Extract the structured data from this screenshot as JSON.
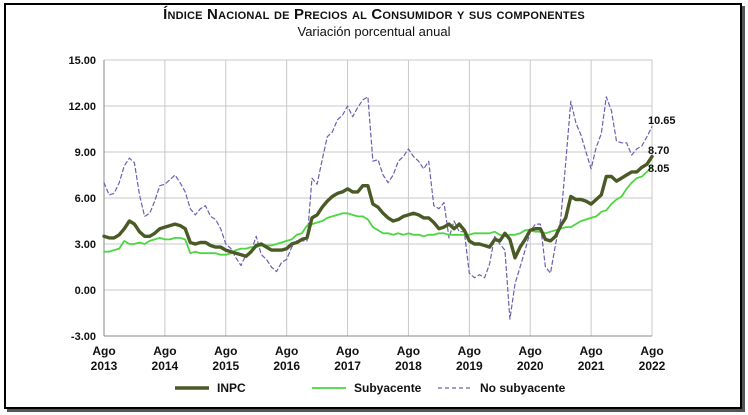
{
  "chart_data": {
    "type": "line",
    "title": "Índice Nacional de Precios al Consumidor y sus componentes",
    "subtitle": "Variación porcentual anual",
    "ylim": [
      -3.0,
      15.0
    ],
    "yticks": [
      "15.00",
      "12.00",
      "9.00",
      "6.00",
      "3.00",
      "0.00",
      "-3.00"
    ],
    "xticks": [
      {
        "top": "Ago",
        "bottom": "2013",
        "t": 0
      },
      {
        "top": "Ago",
        "bottom": "2014",
        "t": 12
      },
      {
        "top": "Ago",
        "bottom": "2015",
        "t": 24
      },
      {
        "top": "Ago",
        "bottom": "2016",
        "t": 36
      },
      {
        "top": "Ago",
        "bottom": "2017",
        "t": 48
      },
      {
        "top": "Ago",
        "bottom": "2018",
        "t": 60
      },
      {
        "top": "Ago",
        "bottom": "2019",
        "t": 72
      },
      {
        "top": "Ago",
        "bottom": "2020",
        "t": 84
      },
      {
        "top": "Ago",
        "bottom": "2021",
        "t": 96
      },
      {
        "top": "Ago",
        "bottom": "2022",
        "t": 108
      }
    ],
    "end_labels": [
      {
        "series": "No subyacente",
        "text": "10.65"
      },
      {
        "series": "INPC",
        "text": "8.70"
      },
      {
        "series": "Subyacente",
        "text": "8.05"
      }
    ],
    "series": [
      {
        "name": "INPC",
        "color": "#4a5a26",
        "values": [
          3.5,
          3.4,
          3.4,
          3.6,
          4.0,
          4.5,
          4.3,
          3.8,
          3.5,
          3.5,
          3.7,
          4.0,
          4.1,
          4.2,
          4.3,
          4.2,
          4.0,
          3.1,
          3.0,
          3.1,
          3.1,
          2.9,
          2.8,
          2.8,
          2.6,
          2.5,
          2.4,
          2.3,
          2.2,
          2.5,
          2.9,
          3.0,
          2.8,
          2.6,
          2.6,
          2.6,
          2.7,
          3.0,
          3.1,
          3.3,
          3.4,
          4.7,
          4.9,
          5.4,
          5.8,
          6.1,
          6.3,
          6.4,
          6.6,
          6.4,
          6.4,
          6.8,
          6.8,
          5.6,
          5.4,
          5.0,
          4.7,
          4.5,
          4.6,
          4.8,
          4.9,
          5.0,
          4.9,
          4.7,
          4.7,
          4.4,
          4.0,
          4.1,
          4.3,
          4.0,
          4.3,
          3.9,
          3.2,
          3.0,
          3.0,
          2.9,
          2.8,
          3.3,
          3.2,
          3.7,
          3.3,
          2.1,
          2.8,
          3.3,
          3.9,
          4.0,
          4.0,
          3.3,
          3.2,
          3.5,
          4.2,
          4.7,
          6.1,
          5.9,
          5.9,
          5.8,
          5.6,
          5.9,
          6.2,
          7.4,
          7.4,
          7.1,
          7.3,
          7.5,
          7.7,
          7.7,
          8.0,
          8.2,
          8.7
        ]
      },
      {
        "name": "Subyacente",
        "color": "#4cd640",
        "values": [
          2.5,
          2.5,
          2.6,
          2.7,
          3.2,
          3.0,
          3.0,
          3.1,
          3.0,
          3.2,
          3.3,
          3.4,
          3.3,
          3.3,
          3.4,
          3.4,
          3.3,
          2.4,
          2.5,
          2.4,
          2.4,
          2.4,
          2.4,
          2.3,
          2.3,
          2.4,
          2.6,
          2.7,
          2.7,
          2.8,
          2.8,
          2.9,
          2.9,
          2.9,
          3.0,
          3.1,
          3.2,
          3.3,
          3.6,
          3.7,
          4.2,
          4.3,
          4.4,
          4.5,
          4.7,
          4.8,
          4.9,
          5.0,
          5.0,
          4.9,
          4.8,
          4.8,
          4.6,
          4.1,
          3.9,
          3.7,
          3.7,
          3.6,
          3.7,
          3.6,
          3.7,
          3.6,
          3.6,
          3.5,
          3.6,
          3.6,
          3.7,
          3.7,
          3.6,
          3.6,
          3.6,
          3.6,
          3.6,
          3.7,
          3.7,
          3.7,
          3.7,
          3.8,
          3.6,
          3.5,
          3.6,
          3.6,
          3.7,
          3.9,
          3.9,
          3.8,
          3.8,
          3.7,
          3.8,
          3.9,
          4.0,
          4.1,
          4.1,
          4.3,
          4.5,
          4.6,
          4.7,
          4.8,
          5.1,
          5.2,
          5.6,
          5.9,
          6.1,
          6.6,
          7.0,
          7.3,
          7.4,
          7.7,
          8.05
        ]
      },
      {
        "name": "No subyacente",
        "color": "#6b60b0",
        "values": [
          7.0,
          6.2,
          6.3,
          7.0,
          8.1,
          8.6,
          8.3,
          6.2,
          4.8,
          5.0,
          5.8,
          6.8,
          6.9,
          7.2,
          7.5,
          7.0,
          6.4,
          5.3,
          4.9,
          5.3,
          5.5,
          4.8,
          4.6,
          4.0,
          3.0,
          2.7,
          2.1,
          1.6,
          2.3,
          2.5,
          3.5,
          2.3,
          2.0,
          1.5,
          1.2,
          1.8,
          2.0,
          2.8,
          3.2,
          3.2,
          3.2,
          7.3,
          6.9,
          8.5,
          10.0,
          10.3,
          11.1,
          11.4,
          12.0,
          11.3,
          11.9,
          12.4,
          12.6,
          8.4,
          8.5,
          7.5,
          7.0,
          7.5,
          8.4,
          8.7,
          9.2,
          8.7,
          8.4,
          7.9,
          8.4,
          5.5,
          5.3,
          5.7,
          3.4,
          4.5,
          3.8,
          3.8,
          1.1,
          0.8,
          1.0,
          0.8,
          1.7,
          3.5,
          3.0,
          2.6,
          -1.9,
          0.4,
          1.5,
          2.6,
          3.8,
          4.3,
          4.3,
          1.5,
          1.1,
          3.0,
          4.6,
          8.3,
          12.3,
          10.9,
          10.1,
          9.0,
          7.9,
          9.3,
          10.2,
          12.6,
          11.7,
          9.7,
          9.6,
          9.6,
          8.8,
          9.2,
          9.4,
          10.0,
          10.65
        ]
      }
    ],
    "legend": [
      {
        "label": "INPC",
        "series": "INPC"
      },
      {
        "label": "Subyacente",
        "series": "Subyacente"
      },
      {
        "label": "No subyacente",
        "series": "No subyacente"
      }
    ]
  }
}
